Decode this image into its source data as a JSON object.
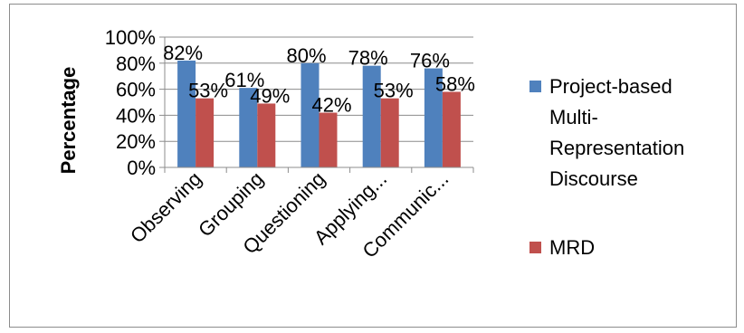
{
  "chart_data": {
    "type": "bar",
    "title": "",
    "xlabel": "",
    "ylabel": "Percentage",
    "ylim": [
      0,
      100
    ],
    "yticks": [
      "0%",
      "20%",
      "40%",
      "60%",
      "80%",
      "100%"
    ],
    "categories": [
      "Observing",
      "Grouping",
      "Questioning",
      "Applying...",
      "Communic..."
    ],
    "series": [
      {
        "name": "Project-based Multi-Representation Discourse",
        "legend_lines": [
          "Project-based",
          "Multi-",
          "Representation",
          "Discourse"
        ],
        "color": "#4f81bd",
        "values": [
          82,
          61,
          80,
          78,
          76
        ],
        "labels": [
          "82%",
          "61%",
          "80%",
          "78%",
          "76%"
        ]
      },
      {
        "name": "MRD",
        "legend_lines": [
          "MRD"
        ],
        "color": "#c0504d",
        "values": [
          53,
          49,
          42,
          53,
          58
        ],
        "labels": [
          "53%",
          "49%",
          "42%",
          "53%",
          "58%"
        ]
      }
    ],
    "grid": true,
    "legend_position": "right"
  }
}
